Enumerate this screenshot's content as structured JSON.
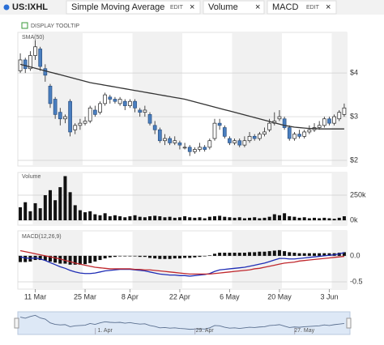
{
  "toolbar": {
    "symbol": "US:IXHL",
    "tabs": [
      {
        "name": "Simple Moving Average",
        "edit": "EDIT",
        "close": "×"
      },
      {
        "name": "Volume",
        "close": "×"
      },
      {
        "name": "MACD",
        "edit": "EDIT",
        "close": "×"
      }
    ],
    "tooltip": "DISPLAY TOOLTIP"
  },
  "chart_data": [
    {
      "type": "candlestick",
      "up_color": "#ffffff",
      "down_color": "#4a7fc0",
      "categories": [
        null,
        null,
        null,
        "11 Mar",
        null,
        null,
        null,
        null,
        null,
        null,
        null,
        null,
        null,
        "25 Mar",
        null,
        null,
        null,
        null,
        null,
        null,
        null,
        null,
        "8 Apr",
        null,
        null,
        null,
        null,
        null,
        null,
        null,
        null,
        null,
        "22 Apr",
        null,
        null,
        null,
        null,
        null,
        null,
        null,
        null,
        null,
        "6 May",
        null,
        null,
        null,
        null,
        null,
        null,
        null,
        null,
        null,
        "20 May",
        null,
        null,
        null,
        null,
        null,
        null,
        null,
        null,
        null,
        "3 Jun",
        null,
        null,
        null
      ],
      "open": [
        4.05,
        4.3,
        4.1,
        4.4,
        4.55,
        4.1,
        3.7,
        3.4,
        3.1,
        2.95,
        3.35,
        2.7,
        2.8,
        2.85,
        2.9,
        3.15,
        3.1,
        3.3,
        3.45,
        3.4,
        3.3,
        3.35,
        3.25,
        3.35,
        3.15,
        3.1,
        3.05,
        2.8,
        2.7,
        2.45,
        2.5,
        2.4,
        2.4,
        2.3,
        2.3,
        2.2,
        2.25,
        2.3,
        2.3,
        2.5,
        2.85,
        2.75,
        2.5,
        2.4,
        2.45,
        2.35,
        2.45,
        2.55,
        2.5,
        2.6,
        2.7,
        2.85,
        2.95,
        2.95,
        2.75,
        2.5,
        2.6,
        2.55,
        2.65,
        2.7,
        2.75,
        2.8,
        2.95,
        2.85,
        2.95,
        3.05
      ],
      "high": [
        4.45,
        4.35,
        4.5,
        4.75,
        4.6,
        4.2,
        3.75,
        3.45,
        3.2,
        3.05,
        3.4,
        2.85,
        2.95,
        3.0,
        3.25,
        3.25,
        3.35,
        3.55,
        3.5,
        3.45,
        3.45,
        3.4,
        3.4,
        3.4,
        3.2,
        3.25,
        3.1,
        2.9,
        2.75,
        2.6,
        2.55,
        2.55,
        2.45,
        2.4,
        2.35,
        2.3,
        2.4,
        2.35,
        2.5,
        2.95,
        2.95,
        2.8,
        2.55,
        2.5,
        2.5,
        2.55,
        2.65,
        2.6,
        2.65,
        2.75,
        2.95,
        3.1,
        3.15,
        3.0,
        2.8,
        2.65,
        2.7,
        2.7,
        2.8,
        2.85,
        2.9,
        3.0,
        3.0,
        3.05,
        3.15,
        3.3
      ],
      "low": [
        4.0,
        4.0,
        4.05,
        4.3,
        4.05,
        3.8,
        3.2,
        2.95,
        2.8,
        2.85,
        2.55,
        2.6,
        2.7,
        2.8,
        2.85,
        3.0,
        3.05,
        3.25,
        3.3,
        3.3,
        3.25,
        3.15,
        3.2,
        3.1,
        3.0,
        3.0,
        2.8,
        2.6,
        2.4,
        2.35,
        2.35,
        2.35,
        2.25,
        2.25,
        2.1,
        2.15,
        2.2,
        2.2,
        2.25,
        2.45,
        2.7,
        2.5,
        2.35,
        2.35,
        2.3,
        2.3,
        2.4,
        2.45,
        2.45,
        2.55,
        2.65,
        2.8,
        2.9,
        2.7,
        2.45,
        2.45,
        2.5,
        2.5,
        2.6,
        2.65,
        2.7,
        2.75,
        2.8,
        2.8,
        2.9,
        3.0
      ],
      "close": [
        4.3,
        4.1,
        4.4,
        4.6,
        4.15,
        3.95,
        3.3,
        3.05,
        2.95,
        3.0,
        2.65,
        2.8,
        2.85,
        2.9,
        3.2,
        3.05,
        3.3,
        3.5,
        3.4,
        3.35,
        3.4,
        3.25,
        3.35,
        3.2,
        3.1,
        3.15,
        2.85,
        2.7,
        2.45,
        2.5,
        2.4,
        2.45,
        2.35,
        2.3,
        2.2,
        2.25,
        2.3,
        2.25,
        2.45,
        2.85,
        2.8,
        2.55,
        2.4,
        2.45,
        2.35,
        2.45,
        2.55,
        2.5,
        2.6,
        2.65,
        2.85,
        2.9,
        3.0,
        2.75,
        2.5,
        2.6,
        2.55,
        2.65,
        2.7,
        2.75,
        2.8,
        2.95,
        2.85,
        3.0,
        3.1,
        3.2
      ],
      "series": [
        {
          "name": "SMA(50)",
          "color": "#333333",
          "values": [
            4.2,
            4.17,
            4.14,
            4.11,
            4.08,
            4.05,
            4.02,
            3.99,
            3.96,
            3.93,
            3.9,
            3.87,
            3.84,
            3.81,
            3.78,
            3.76,
            3.74,
            3.72,
            3.7,
            3.68,
            3.66,
            3.64,
            3.62,
            3.6,
            3.58,
            3.56,
            3.54,
            3.52,
            3.5,
            3.48,
            3.46,
            3.44,
            3.42,
            3.4,
            3.37,
            3.34,
            3.31,
            3.28,
            3.25,
            3.22,
            3.19,
            3.16,
            3.13,
            3.1,
            3.07,
            3.04,
            3.01,
            2.98,
            2.95,
            2.92,
            2.89,
            2.86,
            2.83,
            2.8,
            2.78,
            2.76,
            2.75,
            2.74,
            2.73,
            2.73,
            2.72,
            2.72,
            2.72,
            2.72,
            2.72,
            2.72
          ]
        }
      ],
      "ylim": [
        1.87,
        4.93
      ],
      "yticks": [
        {
          "value": 2,
          "label": "$2"
        },
        {
          "value": 3,
          "label": "$3"
        },
        {
          "value": 4,
          "label": "$4"
        }
      ],
      "grid": true
    },
    {
      "type": "bar",
      "label": "Volume",
      "color": "#111111",
      "values": [
        130,
        180,
        90,
        170,
        120,
        250,
        300,
        200,
        330,
        440,
        280,
        150,
        100,
        80,
        90,
        60,
        50,
        70,
        40,
        50,
        40,
        30,
        40,
        50,
        35,
        30,
        40,
        45,
        40,
        30,
        35,
        25,
        30,
        40,
        30,
        25,
        30,
        20,
        35,
        40,
        45,
        35,
        30,
        25,
        30,
        20,
        25,
        30,
        20,
        25,
        35,
        60,
        50,
        70,
        40,
        35,
        25,
        30,
        20,
        25,
        20,
        25,
        20,
        15,
        25,
        40
      ],
      "ylim": [
        0,
        460
      ],
      "yticks": [
        {
          "value": 0,
          "label": "0k"
        },
        {
          "value": 250,
          "label": "250k"
        }
      ],
      "grid": true
    },
    {
      "type": "macd",
      "label": "MACD(12,26,9)",
      "series": [
        {
          "color": "#1f2db5",
          "values": [
            -0.02,
            -0.04,
            -0.05,
            -0.04,
            -0.06,
            -0.09,
            -0.13,
            -0.17,
            -0.21,
            -0.24,
            -0.28,
            -0.31,
            -0.33,
            -0.34,
            -0.34,
            -0.33,
            -0.31,
            -0.29,
            -0.28,
            -0.27,
            -0.26,
            -0.26,
            -0.26,
            -0.27,
            -0.28,
            -0.29,
            -0.31,
            -0.33,
            -0.35,
            -0.36,
            -0.37,
            -0.37,
            -0.38,
            -0.38,
            -0.39,
            -0.38,
            -0.37,
            -0.36,
            -0.34,
            -0.3,
            -0.27,
            -0.26,
            -0.25,
            -0.24,
            -0.23,
            -0.22,
            -0.2,
            -0.18,
            -0.16,
            -0.14,
            -0.11,
            -0.08,
            -0.05,
            -0.05,
            -0.06,
            -0.06,
            -0.05,
            -0.04,
            -0.03,
            -0.02,
            -0.01,
            0.0,
            0.01,
            0.02,
            0.04,
            0.06
          ]
        },
        {
          "color": "#c0282d",
          "values": [
            0.1,
            0.08,
            0.06,
            0.04,
            0.02,
            0.0,
            -0.02,
            -0.04,
            -0.06,
            -0.09,
            -0.11,
            -0.14,
            -0.16,
            -0.18,
            -0.2,
            -0.22,
            -0.23,
            -0.24,
            -0.25,
            -0.25,
            -0.25,
            -0.25,
            -0.25,
            -0.26,
            -0.26,
            -0.27,
            -0.27,
            -0.28,
            -0.29,
            -0.3,
            -0.31,
            -0.32,
            -0.33,
            -0.34,
            -0.35,
            -0.35,
            -0.35,
            -0.35,
            -0.35,
            -0.34,
            -0.33,
            -0.32,
            -0.31,
            -0.3,
            -0.29,
            -0.28,
            -0.27,
            -0.25,
            -0.24,
            -0.22,
            -0.2,
            -0.18,
            -0.16,
            -0.14,
            -0.13,
            -0.12,
            -0.1,
            -0.09,
            -0.08,
            -0.07,
            -0.06,
            -0.05,
            -0.04,
            -0.03,
            -0.02,
            -0.01
          ]
        }
      ],
      "histogram": {
        "color": "#111111",
        "values": [
          -0.12,
          -0.12,
          -0.11,
          -0.08,
          -0.08,
          -0.09,
          -0.11,
          -0.13,
          -0.15,
          -0.15,
          -0.17,
          -0.17,
          -0.17,
          -0.16,
          -0.14,
          -0.11,
          -0.08,
          -0.05,
          -0.03,
          -0.02,
          -0.01,
          -0.01,
          -0.01,
          -0.01,
          -0.02,
          -0.02,
          -0.04,
          -0.05,
          -0.06,
          -0.06,
          -0.06,
          -0.05,
          -0.05,
          -0.04,
          -0.04,
          -0.03,
          -0.02,
          -0.01,
          0.01,
          0.04,
          0.06,
          0.06,
          0.06,
          0.06,
          0.06,
          0.06,
          0.07,
          0.07,
          0.08,
          0.08,
          0.09,
          0.1,
          0.11,
          0.09,
          0.07,
          0.06,
          0.05,
          0.05,
          0.05,
          0.05,
          0.05,
          0.05,
          0.05,
          0.05,
          0.06,
          0.07
        ]
      },
      "ylim": [
        -0.64,
        0.45
      ],
      "yticks": [
        {
          "value": 0,
          "label": "0.0"
        },
        {
          "value": -0.5,
          "label": "-0.5"
        }
      ],
      "grid": true
    }
  ],
  "navigator": {
    "categories": [
      null,
      null,
      null,
      null,
      null,
      null,
      null,
      null,
      null,
      null,
      null,
      null,
      null,
      null,
      null,
      null,
      null,
      "1. Apr",
      null,
      null,
      null,
      null,
      null,
      null,
      null,
      null,
      null,
      null,
      null,
      null,
      null,
      null,
      null,
      null,
      null,
      null,
      null,
      "29. Apr",
      null,
      null,
      null,
      null,
      null,
      null,
      null,
      null,
      null,
      null,
      null,
      null,
      null,
      null,
      null,
      null,
      null,
      null,
      null,
      "27. May",
      null,
      null,
      null,
      null,
      null,
      null,
      null,
      null
    ]
  }
}
